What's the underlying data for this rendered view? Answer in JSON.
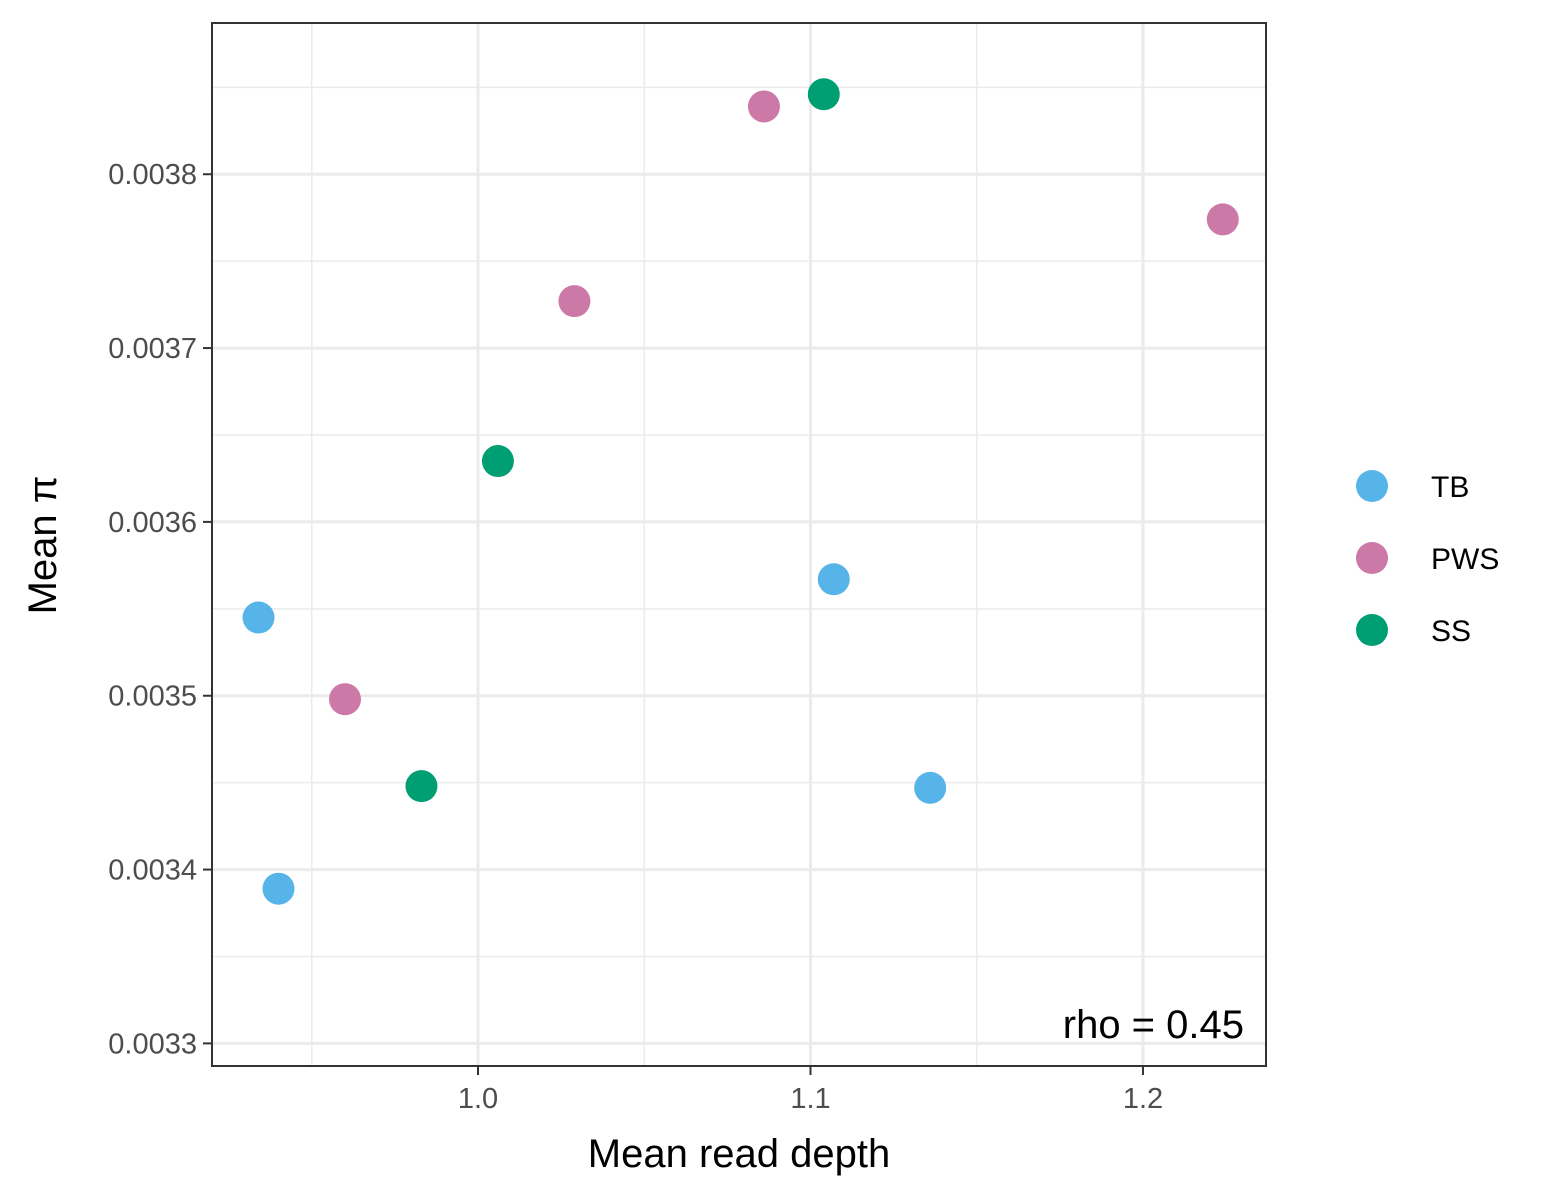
{
  "chart_data": {
    "type": "scatter",
    "xlabel": "Mean read depth",
    "ylabel": "Mean π",
    "xlim": [
      0.92,
      1.237
    ],
    "ylim": [
      0.003287,
      0.003887
    ],
    "x_ticks": [
      1.0,
      1.1,
      1.2
    ],
    "x_tick_labels": [
      "1.0",
      "1.1",
      "1.2"
    ],
    "y_ticks": [
      0.0033,
      0.0034,
      0.0035,
      0.0036,
      0.0037,
      0.0038
    ],
    "y_tick_labels": [
      "0.0033",
      "0.0034",
      "0.0035",
      "0.0036",
      "0.0037",
      "0.0038"
    ],
    "grid": true,
    "legend_position": "right",
    "annotation": "rho = 0.45",
    "series": [
      {
        "name": "TB",
        "color": "#56B4E9",
        "points": [
          {
            "x": 0.934,
            "y": 0.003545
          },
          {
            "x": 0.94,
            "y": 0.003389
          },
          {
            "x": 1.107,
            "y": 0.003567
          },
          {
            "x": 1.136,
            "y": 0.003447
          }
        ]
      },
      {
        "name": "PWS",
        "color": "#CC79A7",
        "points": [
          {
            "x": 0.96,
            "y": 0.003498
          },
          {
            "x": 1.029,
            "y": 0.003727
          },
          {
            "x": 1.086,
            "y": 0.003839
          },
          {
            "x": 1.224,
            "y": 0.003774
          }
        ]
      },
      {
        "name": "SS",
        "color": "#009E73",
        "points": [
          {
            "x": 0.983,
            "y": 0.003448
          },
          {
            "x": 1.006,
            "y": 0.003635
          },
          {
            "x": 1.104,
            "y": 0.003846
          }
        ]
      }
    ]
  }
}
